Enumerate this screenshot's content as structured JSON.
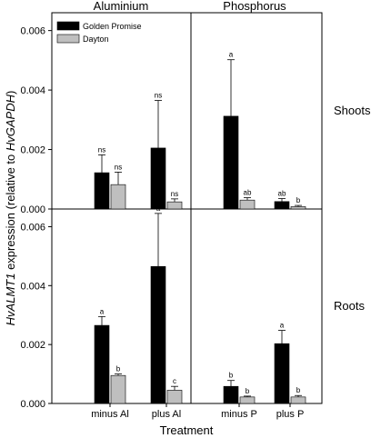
{
  "chart_data": {
    "type": "bar",
    "column_titles": [
      "Aluminium",
      "Phosphorus"
    ],
    "row_titles": [
      "Shoots",
      "Roots"
    ],
    "ylabel_prefix": "",
    "ylabel_gene": "HvALMT1",
    "ylabel_mid": " expression (relative to ",
    "ylabel_ref": "HvGAPDH",
    "ylabel_suffix": ")",
    "xlabel": "Treatment",
    "categories": [
      "minus Al",
      "plus Al",
      "minus P",
      "plus P"
    ],
    "legend": [
      {
        "name": "Golden Promise",
        "color": "#000000"
      },
      {
        "name": "Dayton",
        "color": "#bfbfbf"
      }
    ],
    "ylim": [
      0,
      0.0066
    ],
    "yticks": [
      "0.000",
      "0.002",
      "0.004",
      "0.006"
    ],
    "grid": false,
    "legend_position": "top-left",
    "panels": [
      {
        "name": "Shoots",
        "series": [
          {
            "name": "Golden Promise",
            "values": [
              0.00122,
              0.00205,
              0.00312,
              0.00025
            ],
            "errors": [
              0.0006,
              0.0016,
              0.0019,
              0.0001
            ],
            "labels": [
              "ns",
              "ns",
              "a",
              "ab"
            ]
          },
          {
            "name": "Dayton",
            "values": [
              0.00082,
              0.00024,
              0.0003,
              8e-05
            ],
            "errors": [
              0.00042,
              0.0001,
              8e-05,
              4e-05
            ],
            "labels": [
              "ns",
              "ns",
              "ab",
              "b"
            ]
          }
        ]
      },
      {
        "name": "Roots",
        "series": [
          {
            "name": "Golden Promise",
            "values": [
              0.00265,
              0.00465,
              0.00058,
              0.00203
            ],
            "errors": [
              0.0003,
              0.0018,
              0.0002,
              0.00045
            ],
            "labels": [
              "a",
              "a",
              "b",
              "a"
            ]
          },
          {
            "name": "Dayton",
            "values": [
              0.00095,
              0.00045,
              0.00022,
              0.00022
            ],
            "errors": [
              5e-05,
              0.00013,
              3e-05,
              5e-05
            ],
            "labels": [
              "b",
              "c",
              "b",
              "b"
            ]
          }
        ]
      }
    ]
  }
}
